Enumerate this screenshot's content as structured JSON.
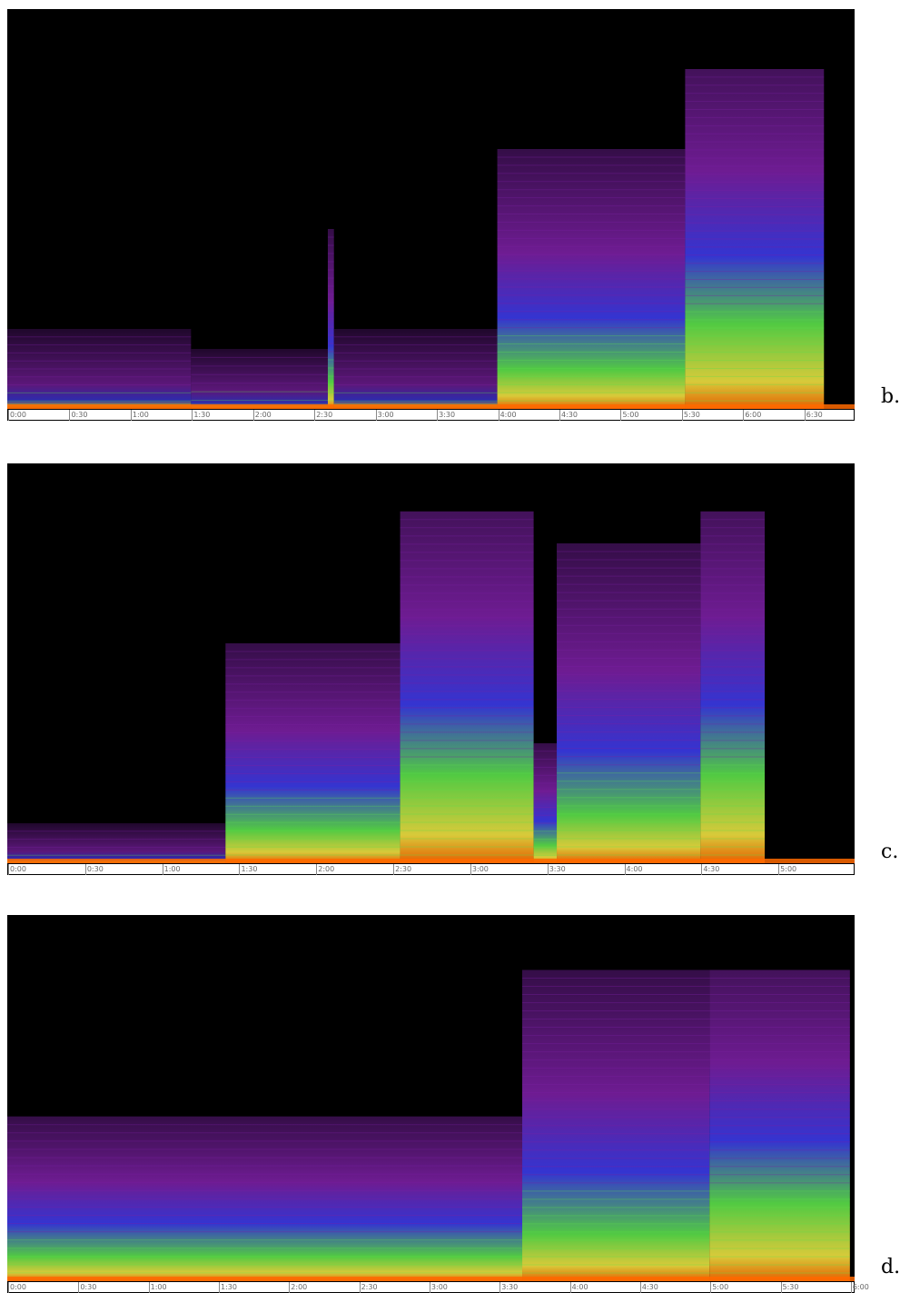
{
  "chart_data": [
    {
      "type": "heatmap",
      "panel_label": "b.",
      "xlabel": "",
      "ylabel": "",
      "duration_label_max": "6:30",
      "x_ticks": [
        "0:00",
        "0:30",
        "1:00",
        "1:30",
        "2:00",
        "2:30",
        "3:00",
        "3:30",
        "4:00",
        "4:30",
        "5:00",
        "5:30",
        "6:00",
        "6:30"
      ],
      "x_range_seconds": [
        0,
        415
      ],
      "sections": [
        {
          "start": "0:00",
          "end": "1:30",
          "peak_frequency_fraction": 0.2,
          "intensity": "low"
        },
        {
          "start": "1:30",
          "end": "2:37",
          "peak_frequency_fraction": 0.15,
          "intensity": "low"
        },
        {
          "start": "2:37",
          "end": "2:40",
          "peak_frequency_fraction": 0.45,
          "intensity": "medium"
        },
        {
          "start": "2:40",
          "end": "4:00",
          "peak_frequency_fraction": 0.2,
          "intensity": "low"
        },
        {
          "start": "4:00",
          "end": "5:32",
          "peak_frequency_fraction": 0.65,
          "intensity": "medium"
        },
        {
          "start": "5:32",
          "end": "6:40",
          "peak_frequency_fraction": 0.85,
          "intensity": "high"
        }
      ]
    },
    {
      "type": "heatmap",
      "panel_label": "c.",
      "xlabel": "",
      "ylabel": "",
      "x_ticks": [
        "0:00",
        "0:30",
        "1:00",
        "1:30",
        "2:00",
        "2:30",
        "3:00",
        "3:30",
        "4:00",
        "4:30",
        "5:00"
      ],
      "x_range_seconds": [
        0,
        330
      ],
      "sections": [
        {
          "start": "0:00",
          "end": "1:25",
          "peak_frequency_fraction": 0.1,
          "intensity": "low"
        },
        {
          "start": "1:25",
          "end": "2:33",
          "peak_frequency_fraction": 0.55,
          "intensity": "medium"
        },
        {
          "start": "2:33",
          "end": "3:25",
          "peak_frequency_fraction": 0.88,
          "intensity": "high"
        },
        {
          "start": "3:25",
          "end": "3:34",
          "peak_frequency_fraction": 0.3,
          "intensity": "medium"
        },
        {
          "start": "3:34",
          "end": "4:30",
          "peak_frequency_fraction": 0.8,
          "intensity": "medium"
        },
        {
          "start": "4:30",
          "end": "4:55",
          "peak_frequency_fraction": 0.88,
          "intensity": "high"
        }
      ]
    },
    {
      "type": "heatmap",
      "panel_label": "d.",
      "xlabel": "",
      "ylabel": "",
      "x_ticks": [
        "0:00",
        "0:30",
        "1:00",
        "1:30",
        "2:00",
        "2:30",
        "3:00",
        "3:30",
        "4:00",
        "4:30",
        "5:00",
        "5:30",
        "6:00"
      ],
      "x_range_seconds": [
        0,
        362
      ],
      "sections": [
        {
          "start": "0:00",
          "end": "3:40",
          "peak_frequency_fraction": 0.45,
          "intensity": "medium"
        },
        {
          "start": "3:40",
          "end": "5:00",
          "peak_frequency_fraction": 0.85,
          "intensity": "medium"
        },
        {
          "start": "5:00",
          "end": "6:00",
          "peak_frequency_fraction": 0.85,
          "intensity": "high"
        }
      ]
    }
  ],
  "colors": {
    "background": "#000000",
    "low": "#7a1fa2",
    "mid": "#3a3ae8",
    "high": "#5be04a",
    "peak": "#f0e040",
    "max": "#ff6a00"
  }
}
